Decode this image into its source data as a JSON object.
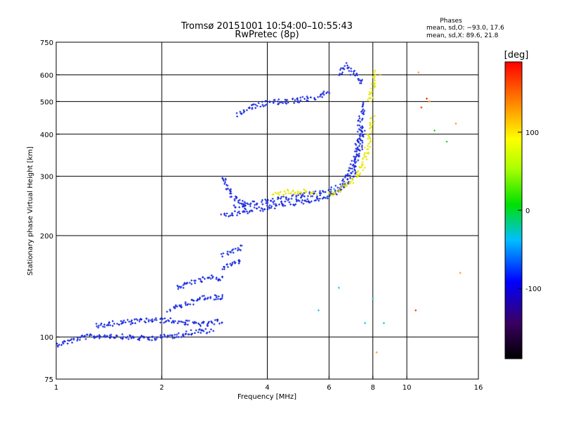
{
  "chart_data": {
    "type": "scatter",
    "title": "Tromsø 20151001 10:54:00–10:55:43",
    "subtitle": "RwPretec (8p)",
    "xlabel": "Frequency [MHz]",
    "ylabel": "Stationary phase Virtual Height [km]",
    "xscale": "log",
    "yscale": "log",
    "xlim": [
      1,
      16
    ],
    "ylim": [
      75,
      750
    ],
    "xticks": [
      1,
      2,
      4,
      6,
      8,
      10,
      16
    ],
    "yticks": [
      75,
      100,
      200,
      300,
      400,
      500,
      600,
      750
    ],
    "xgrid": [
      2,
      4,
      6,
      8,
      10
    ],
    "ygrid": [
      100,
      200,
      300,
      400,
      500,
      600
    ],
    "grid": true,
    "phase_info": {
      "title": "Phases",
      "line1": "mean, sd,O: −93.0, 17.6",
      "line2": "mean, sd,X:  89.6, 21.8"
    },
    "colorbar": {
      "label": "[deg]",
      "ticks": [
        100,
        0,
        -100
      ],
      "range": [
        -190,
        190
      ],
      "placement": "right"
    },
    "colors": {
      "blue": "#1a2be0",
      "yellow": "#e6e600",
      "cyan": "#00c8e6",
      "orange": "#ff9900",
      "red": "#ff2200",
      "green": "#22cc22"
    },
    "traces": [
      {
        "kind": "line",
        "color": "blue",
        "x": [
          1.0,
          1.2,
          1.4,
          1.6,
          1.8,
          2.0,
          2.2,
          2.5,
          2.8
        ],
        "y": [
          95,
          100,
          101,
          100,
          99,
          100,
          101,
          104,
          104
        ]
      },
      {
        "kind": "line",
        "color": "blue",
        "x": [
          1.3,
          1.5,
          1.8,
          2.1,
          2.4,
          2.7,
          3.0
        ],
        "y": [
          108,
          110,
          112,
          112,
          110,
          109,
          112
        ]
      },
      {
        "kind": "line",
        "color": "blue",
        "x": [
          2.1,
          2.3,
          2.5,
          2.7,
          2.9,
          3.0
        ],
        "y": [
          120,
          125,
          128,
          132,
          130,
          134
        ]
      },
      {
        "kind": "line",
        "color": "blue",
        "x": [
          2.2,
          2.4,
          2.6,
          2.8,
          3.0
        ],
        "y": [
          140,
          145,
          148,
          150,
          148
        ]
      },
      {
        "kind": "line",
        "color": "blue",
        "x": [
          3.0,
          3.2,
          3.4
        ],
        "y": [
          160,
          165,
          170
        ]
      },
      {
        "kind": "line",
        "color": "blue",
        "x": [
          3.0,
          3.2,
          3.4
        ],
        "y": [
          175,
          180,
          185
        ]
      },
      {
        "kind": "line",
        "color": "blue",
        "x": [
          3.0,
          3.5,
          4.0,
          4.5,
          5.0,
          5.5,
          6.0,
          6.5,
          7.0,
          7.3,
          7.5
        ],
        "y": [
          228,
          236,
          242,
          248,
          252,
          256,
          262,
          275,
          300,
          350,
          420
        ]
      },
      {
        "kind": "line",
        "color": "blue",
        "x": [
          3.2,
          3.8,
          4.5,
          5.0,
          5.5,
          6.0,
          6.5,
          7.0,
          7.3,
          7.5
        ],
        "y": [
          245,
          250,
          258,
          262,
          266,
          270,
          282,
          320,
          400,
          500
        ]
      },
      {
        "kind": "line",
        "color": "blue",
        "x": [
          3.0,
          3.1,
          3.2,
          3.4,
          3.5
        ],
        "y": [
          300,
          270,
          260,
          250,
          240
        ]
      },
      {
        "kind": "line",
        "color": "blue",
        "x": [
          3.3,
          3.6,
          4.0,
          4.5,
          5.0,
          5.5,
          6.0
        ],
        "y": [
          455,
          480,
          498,
          500,
          505,
          515,
          535
        ]
      },
      {
        "kind": "line",
        "color": "blue",
        "x": [
          6.4,
          6.7,
          7.0,
          7.3,
          7.5
        ],
        "y": [
          600,
          640,
          610,
          590,
          560
        ]
      },
      {
        "kind": "line",
        "color": "yellow",
        "x": [
          4.2,
          4.6,
          5.0,
          5.5
        ],
        "y": [
          265,
          270,
          270,
          268
        ]
      },
      {
        "kind": "line",
        "color": "yellow",
        "x": [
          6.0,
          6.5,
          7.0,
          7.5,
          7.8,
          8.0
        ],
        "y": [
          265,
          275,
          290,
          320,
          380,
          450
        ]
      },
      {
        "kind": "line",
        "color": "yellow",
        "x": [
          7.8,
          8.0,
          8.2
        ],
        "y": [
          500,
          560,
          620
        ]
      },
      {
        "kind": "scatter",
        "color": "cyan",
        "x": [
          5.6,
          5.9,
          6.2,
          6.4,
          7.6,
          8.0,
          8.6
        ],
        "y": [
          120,
          260,
          275,
          140,
          110,
          130,
          110
        ]
      },
      {
        "kind": "scatter",
        "color": "orange",
        "x": [
          8.2,
          8.4,
          10.8,
          11.6,
          13.8,
          14.2
        ],
        "y": [
          90,
          600,
          610,
          500,
          430,
          155
        ]
      },
      {
        "kind": "scatter",
        "color": "red",
        "x": [
          11.0,
          11.4,
          10.6
        ],
        "y": [
          480,
          510,
          120
        ]
      },
      {
        "kind": "scatter",
        "color": "green",
        "x": [
          12.0,
          13.0
        ],
        "y": [
          410,
          380
        ]
      }
    ]
  }
}
